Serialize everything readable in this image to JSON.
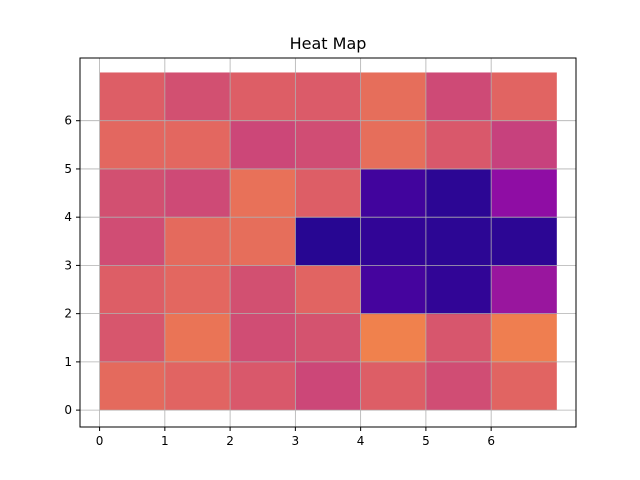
{
  "chart_data": {
    "type": "heatmap",
    "title": "Heat Map",
    "xlabel": "",
    "ylabel": "",
    "x_ticks": [
      "0",
      "1",
      "2",
      "3",
      "4",
      "5",
      "6"
    ],
    "y_ticks": [
      "0",
      "1",
      "2",
      "3",
      "4",
      "5",
      "6"
    ],
    "xlim": [
      -0.3,
      7.3
    ],
    "ylim": [
      -0.35,
      7.3
    ],
    "grid": true,
    "colormap": "plasma",
    "color_range": [
      0.0,
      1.0
    ],
    "values": [
      [
        0.62,
        0.6,
        0.56,
        0.5,
        0.58,
        0.52,
        0.6
      ],
      [
        0.55,
        0.65,
        0.52,
        0.54,
        0.69,
        0.55,
        0.68
      ],
      [
        0.58,
        0.61,
        0.53,
        0.6,
        0.11,
        0.07,
        0.33
      ],
      [
        0.52,
        0.62,
        0.63,
        0.05,
        0.07,
        0.06,
        0.06
      ],
      [
        0.53,
        0.51,
        0.64,
        0.58,
        0.1,
        0.06,
        0.3
      ],
      [
        0.61,
        0.61,
        0.5,
        0.52,
        0.63,
        0.56,
        0.48
      ],
      [
        0.58,
        0.53,
        0.58,
        0.57,
        0.63,
        0.51,
        0.6
      ]
    ]
  }
}
